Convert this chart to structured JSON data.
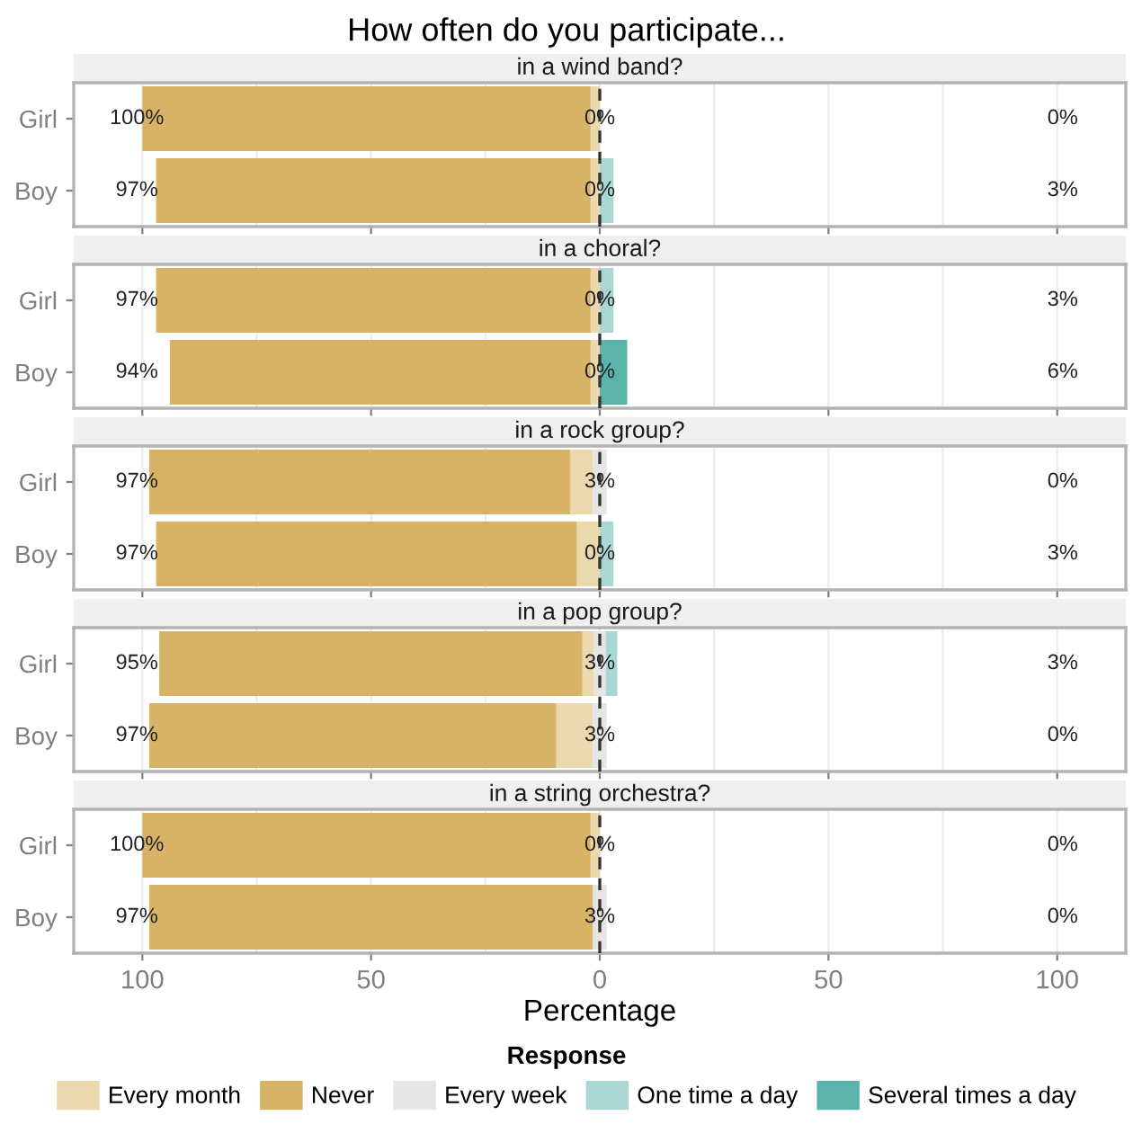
{
  "chart_data": [
    {
      "type": "bar",
      "orientation": "horizontal",
      "stacked": true,
      "title": "How often do you participate...",
      "subtitle": "in a wind band?",
      "categories": [
        "Girl",
        "Boy"
      ],
      "series": [
        {
          "color": "#e5e5e5",
          "values": [
            0,
            0
          ]
        },
        {
          "name": "Every month",
          "color": "#ebd8ad",
          "values": [
            -2,
            -2
          ]
        },
        {
          "name": "Never",
          "color": "#d8b365",
          "values": [
            -98,
            -95
          ]
        },
        {
          "name": "Every week",
          "color": "#e5e5e5",
          "values": [
            0,
            0
          ]
        },
        {
          "name": "One time a day",
          "color": "#a9d8d4",
          "values": [
            0,
            3
          ]
        },
        {
          "name": "Several times a day",
          "color": "#5ab4ac",
          "values": [
            0,
            0
          ]
        }
      ],
      "annotations": [
        "100%",
        "0%",
        "0%",
        "97%",
        "0%",
        "3%"
      ],
      "xlim": [
        -115,
        115
      ],
      "xticks": [
        -100,
        -50,
        0,
        50,
        100
      ],
      "tick_labels": "y",
      "grid": "x",
      "legend": "bottom",
      "legend_title": "Response",
      "ref_lines": [
        {
          "axis": "x",
          "value": 0,
          "line_style": "dashed",
          "color": "#333333"
        }
      ]
    },
    {
      "type": "bar",
      "orientation": "horizontal",
      "stacked": true,
      "subtitle": "in a choral?",
      "categories": [
        "Girl",
        "Boy"
      ],
      "series": [
        {
          "color": "#e5e5e5",
          "values": [
            0,
            0
          ]
        },
        {
          "color": "#ebd8ad",
          "values": [
            -2,
            -2
          ]
        },
        {
          "color": "#d8b365",
          "values": [
            -95,
            -92
          ]
        },
        {
          "color": "#e5e5e5",
          "values": [
            0,
            0
          ]
        },
        {
          "color": "#a9d8d4",
          "values": [
            3,
            0
          ]
        },
        {
          "color": "#5ab4ac",
          "values": [
            0,
            6
          ]
        }
      ],
      "annotations": [
        "97%",
        "0%",
        "3%",
        "94%",
        "0%",
        "6%"
      ],
      "xlim": [
        -115,
        115
      ],
      "xticks": [
        -100,
        -50,
        0,
        50,
        100
      ],
      "tick_labels": "y",
      "grid": "x",
      "ref_lines": [
        {
          "axis": "x",
          "value": 0,
          "line_style": "dashed",
          "color": "#333333"
        }
      ]
    },
    {
      "type": "bar",
      "orientation": "horizontal",
      "stacked": true,
      "subtitle": "in a rock group?",
      "categories": [
        "Girl",
        "Boy"
      ],
      "series": [
        {
          "color": "#e5e5e5",
          "values": [
            -1.5,
            0
          ]
        },
        {
          "color": "#ebd8ad",
          "values": [
            -5,
            -5
          ]
        },
        {
          "color": "#d8b365",
          "values": [
            -92,
            -92
          ]
        },
        {
          "color": "#e5e5e5",
          "values": [
            1.5,
            0
          ]
        },
        {
          "color": "#a9d8d4",
          "values": [
            0,
            3
          ]
        },
        {
          "color": "#5ab4ac",
          "values": [
            0,
            0
          ]
        }
      ],
      "annotations": [
        "97%",
        "3%",
        "0%",
        "97%",
        "0%",
        "3%"
      ],
      "xlim": [
        -115,
        115
      ],
      "xticks": [
        -100,
        -50,
        0,
        50,
        100
      ],
      "tick_labels": "y",
      "grid": "x",
      "ref_lines": [
        {
          "axis": "x",
          "value": 0,
          "line_style": "dashed",
          "color": "#333333"
        }
      ]
    },
    {
      "type": "bar",
      "orientation": "horizontal",
      "stacked": true,
      "subtitle": "in a pop group?",
      "categories": [
        "Girl",
        "Boy"
      ],
      "series": [
        {
          "color": "#e5e5e5",
          "values": [
            -1.3,
            -1.5
          ]
        },
        {
          "color": "#ebd8ad",
          "values": [
            -2.5,
            -8
          ]
        },
        {
          "color": "#d8b365",
          "values": [
            -92.5,
            -89
          ]
        },
        {
          "color": "#e5e5e5",
          "values": [
            1.3,
            1.5
          ]
        },
        {
          "color": "#a9d8d4",
          "values": [
            2.5,
            0
          ]
        },
        {
          "color": "#5ab4ac",
          "values": [
            0,
            0
          ]
        }
      ],
      "annotations": [
        "95%",
        "3%",
        "3%",
        "97%",
        "3%",
        "0%"
      ],
      "xlim": [
        -115,
        115
      ],
      "xticks": [
        -100,
        -50,
        0,
        50,
        100
      ],
      "tick_labels": "y",
      "grid": "x",
      "ref_lines": [
        {
          "axis": "x",
          "value": 0,
          "line_style": "dashed",
          "color": "#333333"
        }
      ]
    },
    {
      "type": "bar",
      "orientation": "horizontal",
      "stacked": true,
      "subtitle": "in a string orchestra?",
      "categories": [
        "Girl",
        "Boy"
      ],
      "series": [
        {
          "color": "#e5e5e5",
          "values": [
            0,
            -1.5
          ]
        },
        {
          "color": "#ebd8ad",
          "values": [
            -2,
            0
          ]
        },
        {
          "color": "#d8b365",
          "values": [
            -98,
            -97
          ]
        },
        {
          "color": "#e5e5e5",
          "values": [
            0,
            1.5
          ]
        },
        {
          "color": "#a9d8d4",
          "values": [
            0,
            0
          ]
        },
        {
          "color": "#5ab4ac",
          "values": [
            0,
            0
          ]
        }
      ],
      "annotations": [
        "100%",
        "0%",
        "0%",
        "97%",
        "3%",
        "0%"
      ],
      "xlim": [
        -115,
        115
      ],
      "xticks": [
        {
          "value": -100,
          "label": "100"
        },
        {
          "value": -50,
          "label": "50"
        },
        0,
        50,
        100
      ],
      "xlabel": "Percentage",
      "grid": "x",
      "ref_lines": [
        {
          "axis": "x",
          "value": 0,
          "line_style": "dashed",
          "color": "#333333"
        }
      ]
    }
  ]
}
